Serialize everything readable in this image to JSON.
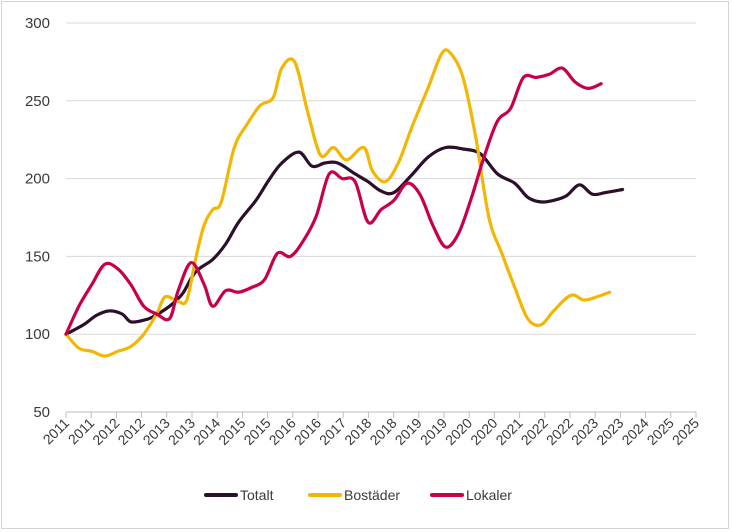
{
  "chart_data": {
    "type": "line",
    "title": "",
    "xlabel": "",
    "ylabel": "",
    "ylim": [
      50,
      300
    ],
    "yticks": [
      50,
      100,
      150,
      200,
      250,
      300
    ],
    "x_tick_labels": [
      "2011",
      "2011",
      "2012",
      "2012",
      "2013",
      "2013",
      "2014",
      "2015",
      "2015",
      "2016",
      "2016",
      "2017",
      "2018",
      "2018",
      "2019",
      "2019",
      "2020",
      "2020",
      "2021",
      "2022",
      "2022",
      "2023",
      "2023",
      "2024",
      "2025",
      "2025"
    ],
    "grid": "horizontal",
    "legend_position": "bottom",
    "x_start": 2011.0,
    "x_end": 2025.6,
    "series": [
      {
        "name": "Totalt",
        "color": "#2b0f2b",
        "points": [
          [
            2011.0,
            100
          ],
          [
            2011.4,
            106
          ],
          [
            2011.7,
            112
          ],
          [
            2012.0,
            115
          ],
          [
            2012.3,
            113
          ],
          [
            2012.5,
            108
          ],
          [
            2012.8,
            109
          ],
          [
            2013.0,
            111
          ],
          [
            2013.4,
            118
          ],
          [
            2013.7,
            126
          ],
          [
            2014.0,
            140
          ],
          [
            2014.4,
            148
          ],
          [
            2014.7,
            158
          ],
          [
            2015.0,
            172
          ],
          [
            2015.4,
            186
          ],
          [
            2015.7,
            199
          ],
          [
            2016.0,
            210
          ],
          [
            2016.4,
            217
          ],
          [
            2016.7,
            208
          ],
          [
            2017.0,
            210
          ],
          [
            2017.3,
            210
          ],
          [
            2017.7,
            203
          ],
          [
            2018.0,
            198
          ],
          [
            2018.3,
            192
          ],
          [
            2018.6,
            191
          ],
          [
            2019.0,
            202
          ],
          [
            2019.4,
            214
          ],
          [
            2019.8,
            220
          ],
          [
            2020.2,
            219
          ],
          [
            2020.6,
            216
          ],
          [
            2021.0,
            203
          ],
          [
            2021.4,
            197
          ],
          [
            2021.7,
            188
          ],
          [
            2022.0,
            185
          ],
          [
            2022.3,
            186
          ],
          [
            2022.6,
            189
          ],
          [
            2022.9,
            196
          ],
          [
            2023.2,
            190
          ],
          [
            2023.5,
            191
          ],
          [
            2023.9,
            193
          ]
        ]
      },
      {
        "name": "Bostäder",
        "color": "#f2b705",
        "points": [
          [
            2011.0,
            100
          ],
          [
            2011.3,
            91
          ],
          [
            2011.6,
            89
          ],
          [
            2011.9,
            86
          ],
          [
            2012.2,
            89
          ],
          [
            2012.5,
            92
          ],
          [
            2012.8,
            100
          ],
          [
            2013.1,
            113
          ],
          [
            2013.3,
            124
          ],
          [
            2013.6,
            121
          ],
          [
            2013.8,
            122
          ],
          [
            2014.0,
            148
          ],
          [
            2014.2,
            170
          ],
          [
            2014.4,
            180
          ],
          [
            2014.6,
            185
          ],
          [
            2014.9,
            220
          ],
          [
            2015.2,
            235
          ],
          [
            2015.5,
            247
          ],
          [
            2015.8,
            252
          ],
          [
            2016.0,
            271
          ],
          [
            2016.3,
            275
          ],
          [
            2016.6,
            243
          ],
          [
            2016.9,
            215
          ],
          [
            2017.2,
            220
          ],
          [
            2017.5,
            212
          ],
          [
            2017.9,
            220
          ],
          [
            2018.1,
            205
          ],
          [
            2018.4,
            198
          ],
          [
            2018.7,
            210
          ],
          [
            2019.0,
            232
          ],
          [
            2019.4,
            259
          ],
          [
            2019.7,
            280
          ],
          [
            2019.9,
            281
          ],
          [
            2020.2,
            265
          ],
          [
            2020.5,
            226
          ],
          [
            2020.8,
            175
          ],
          [
            2021.1,
            152
          ],
          [
            2021.4,
            130
          ],
          [
            2021.7,
            110
          ],
          [
            2022.0,
            106
          ],
          [
            2022.3,
            115
          ],
          [
            2022.7,
            125
          ],
          [
            2023.0,
            122
          ],
          [
            2023.3,
            124
          ],
          [
            2023.6,
            127
          ]
        ]
      },
      {
        "name": "Lokaler",
        "color": "#c8004b",
        "points": [
          [
            2011.0,
            100
          ],
          [
            2011.3,
            118
          ],
          [
            2011.6,
            132
          ],
          [
            2011.9,
            145
          ],
          [
            2012.2,
            142
          ],
          [
            2012.5,
            132
          ],
          [
            2012.8,
            118
          ],
          [
            2013.1,
            113
          ],
          [
            2013.4,
            110
          ],
          [
            2013.6,
            128
          ],
          [
            2013.9,
            146
          ],
          [
            2014.2,
            132
          ],
          [
            2014.4,
            118
          ],
          [
            2014.7,
            128
          ],
          [
            2015.0,
            127
          ],
          [
            2015.3,
            130
          ],
          [
            2015.6,
            135
          ],
          [
            2015.9,
            152
          ],
          [
            2016.2,
            150
          ],
          [
            2016.5,
            160
          ],
          [
            2016.8,
            176
          ],
          [
            2017.1,
            203
          ],
          [
            2017.4,
            200
          ],
          [
            2017.7,
            198
          ],
          [
            2018.0,
            172
          ],
          [
            2018.3,
            180
          ],
          [
            2018.6,
            186
          ],
          [
            2018.9,
            197
          ],
          [
            2019.2,
            190
          ],
          [
            2019.5,
            170
          ],
          [
            2019.8,
            156
          ],
          [
            2020.1,
            165
          ],
          [
            2020.4,
            188
          ],
          [
            2020.7,
            215
          ],
          [
            2021.0,
            237
          ],
          [
            2021.3,
            245
          ],
          [
            2021.6,
            265
          ],
          [
            2021.9,
            265
          ],
          [
            2022.2,
            267
          ],
          [
            2022.5,
            271
          ],
          [
            2022.8,
            262
          ],
          [
            2023.1,
            258
          ],
          [
            2023.4,
            261
          ]
        ]
      }
    ]
  }
}
